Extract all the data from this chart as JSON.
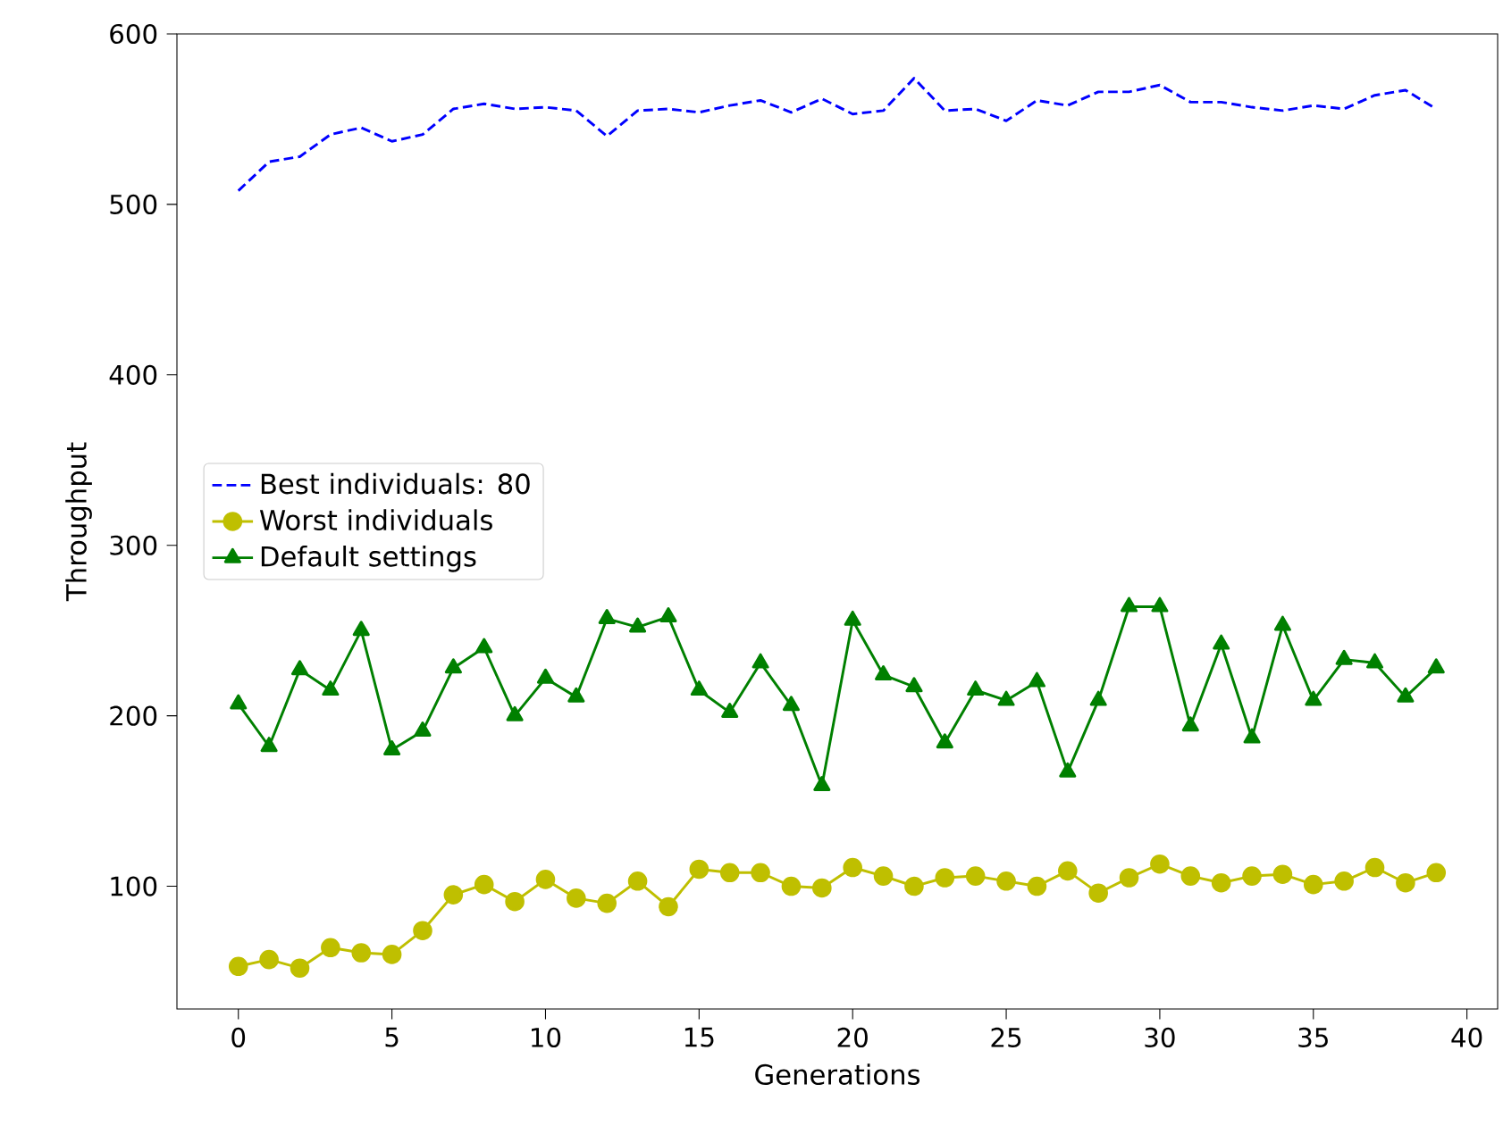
{
  "chart_data": {
    "type": "line",
    "xlabel": "Generations",
    "ylabel": "Throughput",
    "x": [
      0,
      1,
      2,
      3,
      4,
      5,
      6,
      7,
      8,
      9,
      10,
      11,
      12,
      13,
      14,
      15,
      16,
      17,
      18,
      19,
      20,
      21,
      22,
      23,
      24,
      25,
      26,
      27,
      28,
      29,
      30,
      31,
      32,
      33,
      34,
      35,
      36,
      37,
      38,
      39
    ],
    "xlim": [
      -2,
      41
    ],
    "ylim": [
      28,
      600
    ],
    "xticks": [
      0,
      5,
      10,
      15,
      20,
      25,
      30,
      35,
      40
    ],
    "yticks": [
      100,
      200,
      300,
      400,
      500,
      600
    ],
    "grid": false,
    "legend": "left",
    "series": [
      {
        "name": "Best individuals: 80",
        "color": "#0000ff",
        "line_style": "dashed",
        "marker": "none",
        "values": [
          508,
          525,
          528,
          541,
          545,
          537,
          541,
          556,
          559,
          556,
          557,
          555,
          540,
          555,
          556,
          554,
          558,
          561,
          554,
          562,
          553,
          555,
          574,
          555,
          556,
          549,
          561,
          558,
          566,
          566,
          570,
          560,
          560,
          557,
          555,
          558,
          556,
          564,
          567,
          556
        ]
      },
      {
        "name": "Worst individuals",
        "color": "#bfbf00",
        "line_style": "solid",
        "marker": "circle",
        "values": [
          53,
          57,
          52,
          64,
          61,
          60,
          74,
          95,
          101,
          91,
          104,
          93,
          90,
          103,
          88,
          110,
          108,
          108,
          100,
          99,
          111,
          106,
          100,
          105,
          106,
          103,
          100,
          109,
          96,
          105,
          113,
          106,
          102,
          106,
          107,
          101,
          103,
          111,
          102,
          108
        ]
      },
      {
        "name": "Default settings",
        "color": "#008000",
        "line_style": "solid",
        "marker": "triangle",
        "values": [
          207,
          182,
          227,
          215,
          250,
          180,
          191,
          228,
          240,
          200,
          222,
          211,
          257,
          252,
          258,
          215,
          202,
          231,
          206,
          159,
          256,
          224,
          217,
          184,
          215,
          209,
          220,
          167,
          209,
          264,
          264,
          194,
          242,
          187,
          253,
          209,
          233,
          231,
          211,
          228
        ]
      }
    ]
  }
}
